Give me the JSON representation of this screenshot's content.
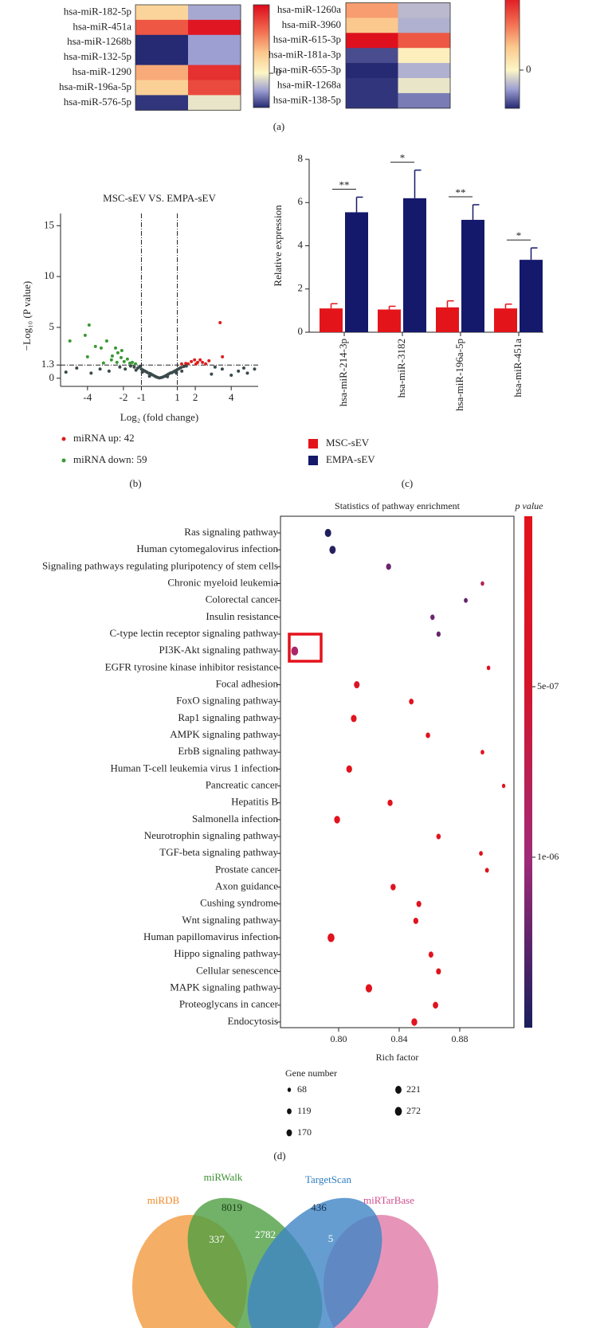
{
  "panel_labels": [
    "(a)",
    "(b)",
    "(c)",
    "(d)"
  ],
  "chart_data": [
    {
      "type": "heatmap",
      "rows": [
        "hsa-miR-182-5p",
        "hsa-miR-451a",
        "hsa-miR-1268b",
        "hsa-miR-132-5p",
        "hsa-miR-1290",
        "hsa-miR-196a-5p",
        "hsa-miR-576-5p"
      ],
      "values": [
        [
          0.45,
          -0.45
        ],
        [
          1.4,
          1.9
        ],
        [
          -1,
          -0.5
        ],
        [
          -1,
          -0.5
        ],
        [
          0.8,
          1.7
        ],
        [
          0.5,
          1.5
        ],
        [
          -0.95,
          -0.1
        ]
      ],
      "zlim": [
        -1,
        2
      ],
      "colorscale": [
        [
          -1,
          "#252a72"
        ],
        [
          -0.5,
          "#9d9fd2"
        ],
        [
          0,
          "#fcf6c6"
        ],
        [
          0.6,
          "#fbc88d"
        ],
        [
          1.2,
          "#f27152"
        ],
        [
          2,
          "#dd0a1b"
        ]
      ],
      "cbar_ticks": [
        0
      ]
    },
    {
      "type": "heatmap",
      "rows": [
        "hsa-miR-1260a",
        "hsa-miR-3960",
        "hsa-miR-615-3p",
        "hsa-miR-181a-3p",
        "hsa-miR-655-3p",
        "hsa-miR-1268a",
        "hsa-miR-138-5p"
      ],
      "values": [
        [
          0.9,
          -0.35
        ],
        [
          0.6,
          -0.4
        ],
        [
          1.95,
          1.4
        ],
        [
          -0.85,
          0.1
        ],
        [
          -1,
          -0.4
        ],
        [
          -0.95,
          -0.1
        ],
        [
          -0.95,
          -0.65
        ]
      ],
      "zlim": [
        -1,
        2
      ],
      "colorscale": [
        [
          -1,
          "#252a72"
        ],
        [
          -0.5,
          "#9d9fd2"
        ],
        [
          0,
          "#fcf6c6"
        ],
        [
          0.6,
          "#fbc88d"
        ],
        [
          1.2,
          "#f27152"
        ],
        [
          2,
          "#dd0a1b"
        ]
      ],
      "cbar_ticks": [
        0
      ]
    },
    {
      "type": "scatter",
      "title": "MSC-sEV VS. EMPA-sEV",
      "x_label": "Log₂ (fold change)",
      "y_label": "−Log₁₀ (P value)",
      "xlim": [
        -5.5,
        5.5
      ],
      "ylim": [
        -0.8,
        16.2
      ],
      "xticks": [
        -4,
        -2,
        -1,
        1,
        2,
        4
      ],
      "yticks": [
        0,
        1.3,
        5,
        10,
        15
      ],
      "thresholds": {
        "x": [
          -1,
          1
        ],
        "y": 1.3
      },
      "series": [
        {
          "name": "miRNA up: 42",
          "color": "#d9201e",
          "x": [
            3.38,
            3.51,
            1.6,
            1.78,
            1.96,
            2.13,
            2.27,
            2.4,
            2.58,
            2.76,
            1.47,
            2.04,
            1.24
          ],
          "values": [
            5.47,
            2.11,
            1.41,
            1.64,
            1.8,
            1.56,
            1.8,
            1.56,
            1.41,
            1.72,
            1.45,
            1.4,
            1.4
          ]
        },
        {
          "name": "miRNA down: 59",
          "color": "#3a9a35",
          "x": [
            -4.98,
            -4.13,
            -3.91,
            -3.56,
            -4.0,
            -3.24,
            -2.93,
            -3.11,
            -2.62,
            -2.44,
            -2.31,
            -2.13,
            -2.67,
            -1.96,
            -2.36,
            -1.78,
            -1.64,
            -2.09,
            -1.51,
            -1.33
          ],
          "values": [
            3.67,
            4.22,
            5.23,
            3.13,
            2.11,
            2.97,
            3.67,
            1.5,
            2.19,
            2.97,
            2.5,
            2.03,
            1.8,
            1.64,
            1.56,
            1.88,
            1.48,
            2.73,
            1.56,
            1.41
          ]
        },
        {
          "color": "#3b4a4a",
          "x": [
            -5.2,
            -4.6,
            -3.8,
            -3.3,
            -2.8,
            -2.2,
            -1.9,
            2.9,
            3.5,
            4.0,
            4.4,
            4.9,
            5.3,
            3.1,
            4.7,
            -1.6,
            -1.4,
            -1.2,
            -1.1,
            -1.0,
            -0.9,
            -0.8,
            -0.7,
            -0.6,
            -0.5,
            -0.4,
            -0.3,
            -0.2,
            -0.1,
            0,
            0.1,
            0.2,
            0.3,
            0.4,
            0.5,
            0.6,
            0.7,
            0.8,
            0.9,
            1.0,
            1.1,
            1.2,
            1.35,
            1.5,
            -1.3,
            -0.95,
            0.95,
            1.25,
            -0.55,
            0.45
          ],
          "values": [
            0.6,
            1.0,
            0.5,
            0.9,
            0.7,
            1.1,
            0.9,
            0.4,
            0.9,
            0.3,
            0.7,
            0.5,
            0.9,
            1.1,
            1.0,
            1.2,
            1.1,
            1.0,
            1.15,
            0.9,
            0.8,
            0.7,
            0.6,
            0.5,
            0.45,
            0.35,
            0.25,
            0.15,
            0.08,
            0.03,
            0.06,
            0.12,
            0.2,
            0.3,
            0.4,
            0.5,
            0.55,
            0.65,
            0.75,
            0.85,
            0.95,
            1.05,
            1.15,
            1.2,
            0.8,
            0.6,
            0.5,
            0.7,
            0.2,
            0.15
          ]
        }
      ]
    },
    {
      "type": "bar",
      "y_label": "Relative expression",
      "categories": [
        "hsa-miR-214-3p",
        "hsa-miR-3182",
        "hsa-miR-196a-5p",
        "hsa-miR-451a"
      ],
      "ylim": [
        0,
        8
      ],
      "yticks": [
        0,
        2,
        4,
        6,
        8
      ],
      "series": [
        {
          "name": "MSC-sEV",
          "color": "#e3151b",
          "values": [
            1.1,
            1.05,
            1.15,
            1.1
          ],
          "errors": [
            0.22,
            0.15,
            0.3,
            0.2
          ]
        },
        {
          "name": "EMPA-sEV",
          "color": "#14196b",
          "values": [
            5.55,
            6.2,
            5.2,
            3.35
          ],
          "errors": [
            0.7,
            1.3,
            0.7,
            0.55
          ]
        }
      ],
      "significance": [
        "**",
        "*",
        "**",
        "*"
      ]
    },
    {
      "type": "dot",
      "title": "Statistics of pathway enrichment",
      "x_label": "Rich factor",
      "categories": [
        "Ras signaling pathway",
        "Human cytomegalovirus infection",
        "Signaling pathways regulating pluripotency of stem cells",
        "Chronic myeloid leukemia",
        "Colorectal cancer",
        "Insulin resistance",
        "C-type lectin receptor signaling pathway",
        "PI3K-Akt signaling pathway",
        "EGFR tyrosine kinase inhibitor resistance",
        "Focal adhesion",
        "FoxO signaling pathway",
        "Rap1 signaling pathway",
        "AMPK signaling pathway",
        "ErbB signaling pathway",
        "Human T-cell leukemia virus 1 infection",
        "Pancreatic cancer",
        "Hepatitis B",
        "Salmonella infection",
        "Neurotrophin signaling pathway",
        "TGF-beta signaling pathway",
        "Prostate cancer",
        "Axon guidance",
        "Cushing syndrome",
        "Wnt signaling pathway",
        "Human papillomavirus infection",
        "Hippo signaling pathway",
        "Cellular senescence",
        "MAPK signaling pathway",
        "Proteoglycans in cancer",
        "Endocytosis"
      ],
      "values": [
        0.793,
        0.796,
        0.833,
        0.895,
        0.884,
        0.862,
        0.866,
        0.771,
        0.899,
        0.812,
        0.848,
        0.81,
        0.859,
        0.895,
        0.807,
        0.909,
        0.834,
        0.799,
        0.866,
        0.894,
        0.898,
        0.836,
        0.853,
        0.851,
        0.795,
        0.861,
        0.866,
        0.82,
        0.864,
        0.85
      ],
      "sizes": [
        230,
        225,
        140,
        75,
        85,
        105,
        100,
        272,
        75,
        180,
        120,
        185,
        110,
        78,
        190,
        68,
        145,
        200,
        110,
        80,
        85,
        150,
        135,
        140,
        270,
        130,
        135,
        240,
        165,
        200
      ],
      "pvalues": [
        1.48e-06,
        1.45e-06,
        1.2e-06,
        8e-07,
        1.22e-06,
        1.2e-06,
        1.22e-06,
        9e-07,
        2e-07,
        3e-07,
        1e-07,
        1e-07,
        1e-07,
        1e-07,
        1e-07,
        1e-07,
        1e-07,
        1e-07,
        1e-07,
        1e-07,
        1e-07,
        1e-07,
        1e-07,
        1e-07,
        1e-07,
        1e-07,
        1e-07,
        1e-07,
        1e-07,
        1e-07
      ],
      "xlim": [
        0.7616,
        0.9158
      ],
      "xticks": [
        {
          "value": 0.8,
          "label": "0.80"
        },
        {
          "value": 0.84,
          "label": "0.84"
        },
        {
          "value": 0.88,
          "label": "0.88"
        }
      ],
      "color_title": "p value",
      "clim": [
        0,
        1.5e-06
      ],
      "cticks": [
        {
          "value": 5e-07,
          "label": "5e-07"
        },
        {
          "value": 1e-06,
          "label": "1e-06"
        }
      ],
      "colorscale": [
        [
          0,
          "#e3121b"
        ],
        [
          5e-07,
          "#d3152b"
        ],
        [
          1e-06,
          "#a02a78"
        ],
        [
          1.5e-06,
          "#1a1f5c"
        ]
      ],
      "size_legend": {
        "title": "Gene number",
        "values": [
          68,
          119,
          170,
          221,
          272
        ]
      }
    },
    {
      "type": "venn",
      "sets": [
        "miRDB",
        "miRWalk",
        "TargetScan",
        "miRTarBase"
      ],
      "set_colors": [
        "#ef8a2a",
        "#3f8f34",
        "#2f7cc0",
        "#d0508e"
      ],
      "regions": [
        8019,
        436,
        337,
        2782,
        5
      ]
    }
  ]
}
